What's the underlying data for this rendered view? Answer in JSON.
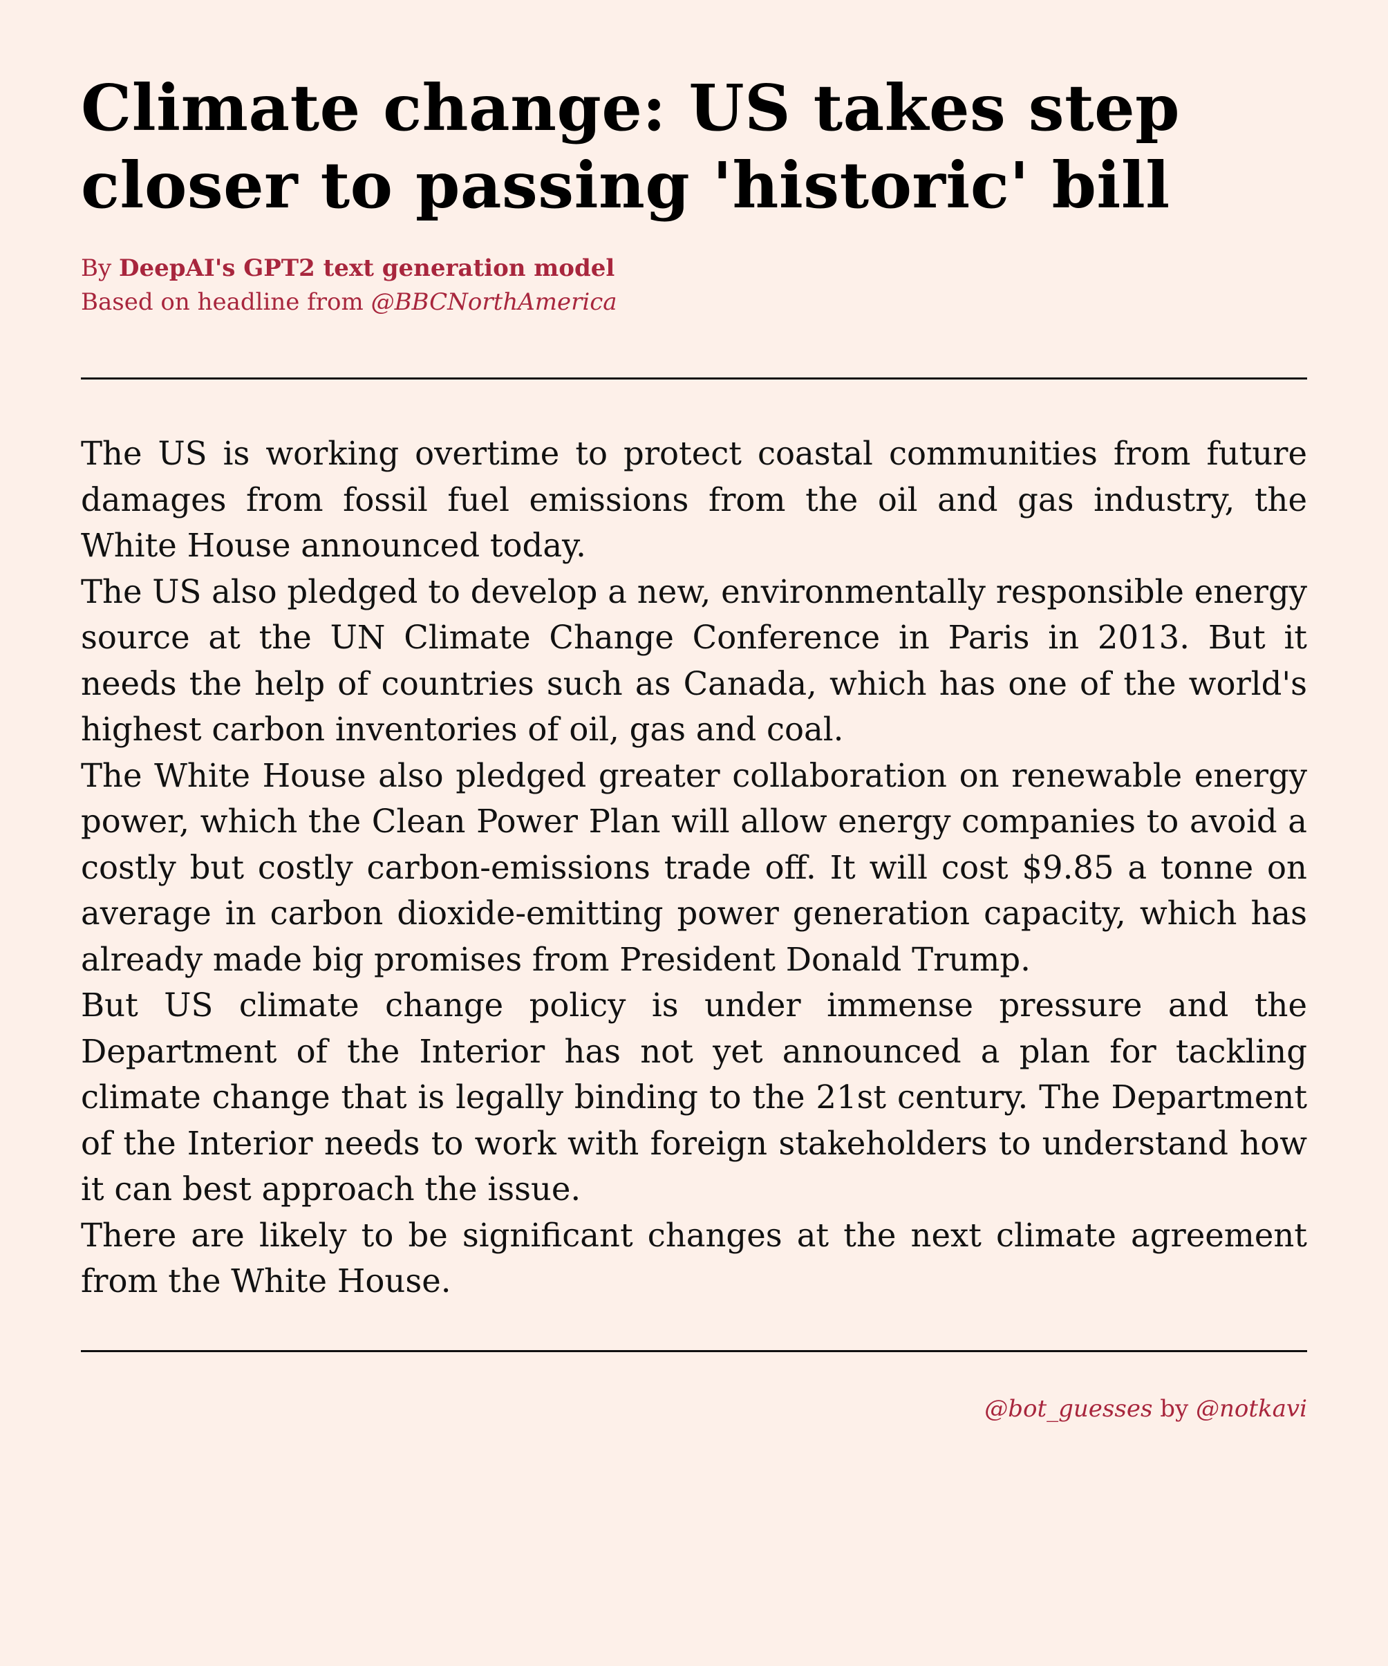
{
  "article": {
    "title": "Climate change: US takes step closer to passing 'historic' bill",
    "byline": {
      "prefix": "By ",
      "author": "DeepAI's GPT2 text generation model",
      "source_prefix": "Based on headline from ",
      "source": "@BBCNorthAmerica"
    },
    "paragraphs": [
      "The US is working overtime to protect coastal communities from future damages from fossil fuel emissions from the oil and gas industry, the White House announced today.",
      "The US also pledged to develop a new, environmentally responsible energy source at the UN Climate Change Conference in Paris in 2013. But it needs the help of countries such as Canada, which has one of the world's highest carbon inventories of oil, gas and coal.",
      "The White House also pledged greater collaboration on renewable energy power, which the Clean Power Plan will allow energy companies to avoid a costly but costly carbon-emissions trade off.  It will cost $9.85 a tonne on average in carbon dioxide-emitting power generation capacity, which has already made big promises from President Donald Trump.",
      "But US climate change policy is under immense pressure and the Department of the Interior has not yet announced a plan for tackling climate change that is legally binding to the 21st century.  The Department of the Interior needs to work with foreign stakeholders to understand how it can best approach the issue.",
      "There are likely to be significant changes at the next climate agreement from the White House."
    ]
  },
  "footer": {
    "bot_handle": "@bot_guesses",
    "by": " by ",
    "author_handle": "@notkavi"
  },
  "colors": {
    "background": "#fdf0e9",
    "accent": "#a8263d",
    "text": "#111111"
  }
}
